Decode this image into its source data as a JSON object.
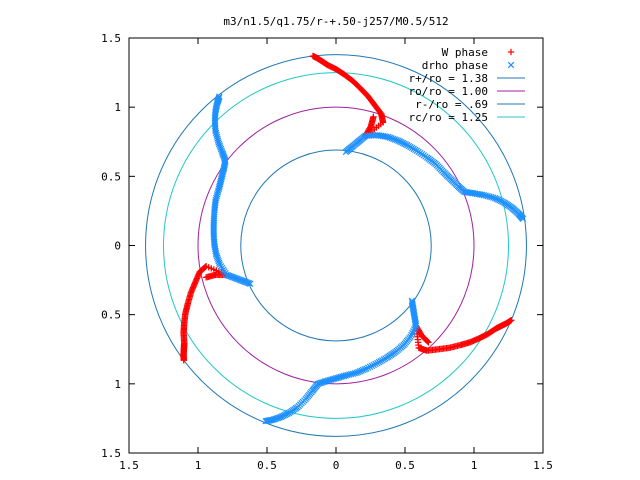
{
  "chart_data": {
    "type": "scatter",
    "title": "m3/n1.5/q1.75/r-+.50-j257/M0.5/512",
    "xlabel": "",
    "ylabel": "",
    "xlim": [
      -1.5,
      1.5
    ],
    "ylim": [
      -1.5,
      1.5
    ],
    "x_ticks": [
      -1.5,
      -1,
      -0.5,
      0,
      0.5,
      1,
      1.5
    ],
    "x_tick_labels": [
      "1.5",
      "1",
      "0.5",
      "0",
      "0.5",
      "1",
      "1.5"
    ],
    "y_ticks": [
      1.5,
      1,
      0.5,
      0,
      -0.5,
      -1,
      -1.5
    ],
    "y_tick_labels": [
      "1.5",
      "1",
      "0.5",
      "0",
      "0.5",
      "1",
      "1.5"
    ],
    "grid": false,
    "legend_position": "top-right",
    "symmetry": "3-fold rotational (m3)",
    "series": [
      {
        "name": "W phase",
        "kind": "points",
        "marker": "plus",
        "color": "#ff0000",
        "arm_points": [
          [
            0.67,
            -0.7
          ],
          [
            0.62,
            -0.65
          ],
          [
            0.58,
            -0.58
          ],
          [
            0.6,
            -0.74
          ],
          [
            0.66,
            -0.76
          ],
          [
            0.74,
            -0.75
          ],
          [
            0.82,
            -0.74
          ],
          [
            0.9,
            -0.72
          ],
          [
            0.97,
            -0.7
          ],
          [
            1.04,
            -0.67
          ],
          [
            1.1,
            -0.64
          ],
          [
            1.16,
            -0.6
          ],
          [
            1.2,
            -0.58
          ],
          [
            1.24,
            -0.56
          ],
          [
            1.27,
            -0.54
          ]
        ]
      },
      {
        "name": "drho phase",
        "kind": "points",
        "marker": "cross",
        "color": "#1e90ff",
        "arm_points": [
          [
            0.55,
            -0.4
          ],
          [
            0.56,
            -0.46
          ],
          [
            0.57,
            -0.52
          ],
          [
            0.58,
            -0.58
          ],
          [
            0.54,
            -0.66
          ],
          [
            0.49,
            -0.72
          ],
          [
            0.43,
            -0.77
          ],
          [
            0.37,
            -0.81
          ],
          [
            0.3,
            -0.85
          ],
          [
            0.22,
            -0.89
          ],
          [
            0.15,
            -0.92
          ],
          [
            0.07,
            -0.94
          ],
          [
            0.0,
            -0.96
          ],
          [
            -0.07,
            -0.98
          ],
          [
            -0.13,
            -1.0
          ],
          [
            -0.17,
            -1.05
          ],
          [
            -0.22,
            -1.11
          ],
          [
            -0.28,
            -1.17
          ],
          [
            -0.34,
            -1.21
          ],
          [
            -0.4,
            -1.24
          ],
          [
            -0.46,
            -1.26
          ],
          [
            -0.51,
            -1.27
          ]
        ]
      },
      {
        "name": "r+/ro = 1.38",
        "kind": "circle",
        "radius": 1.38,
        "color": "#1f78b4"
      },
      {
        "name": "ro/ro = 1.00",
        "kind": "circle",
        "radius": 1.0,
        "color": "#a020a0"
      },
      {
        "name": "r-/ro = .69",
        "kind": "circle",
        "radius": 0.69,
        "color": "#1f78b4"
      },
      {
        "name": "rc/ro = 1.25",
        "kind": "circle",
        "radius": 1.25,
        "color": "#20c8c8"
      }
    ]
  }
}
